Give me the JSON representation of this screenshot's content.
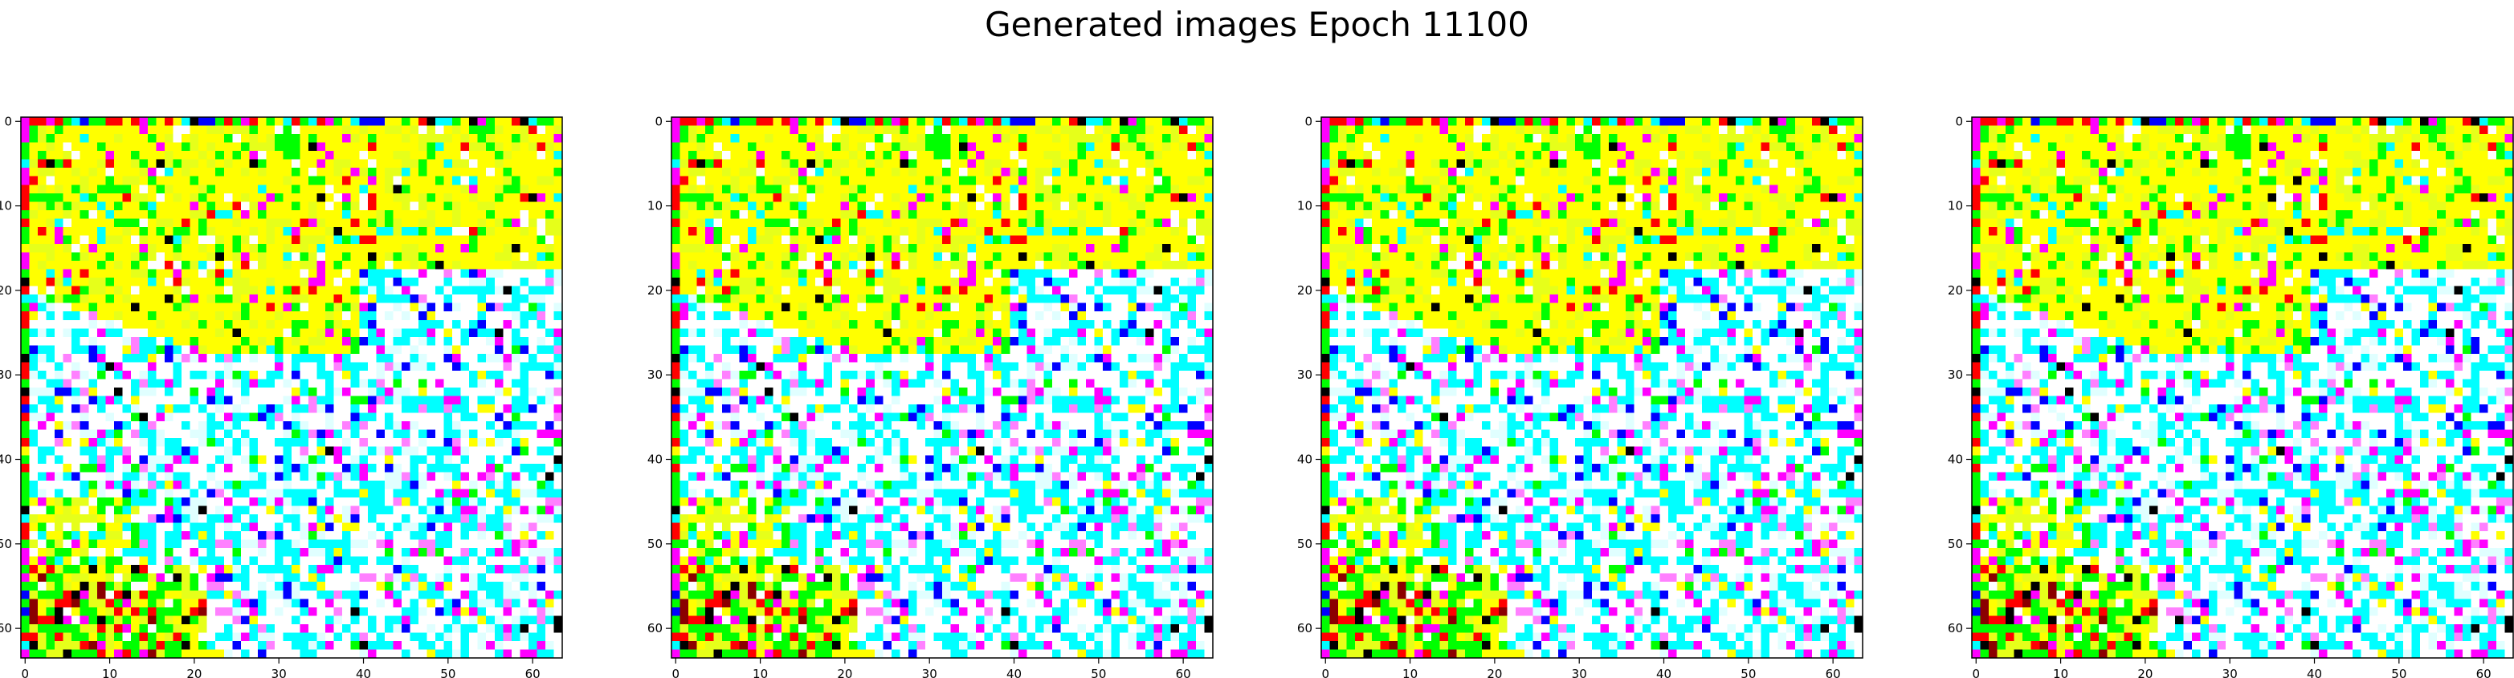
{
  "figure": {
    "title": "Generated images Epoch 11100"
  },
  "chart_data": {
    "type": "heatmap",
    "title": "Generated images Epoch 11100",
    "panel_count": 4,
    "image_shape": [
      64,
      64,
      3
    ],
    "xlim": [
      -0.5,
      63.5
    ],
    "ylim": [
      63.5,
      -0.5
    ],
    "x_ticks": [
      0,
      10,
      20,
      30,
      40,
      50,
      60
    ],
    "y_ticks": [
      0,
      10,
      20,
      30,
      40,
      50,
      60
    ],
    "xlabel": "",
    "ylabel": "",
    "grid": false,
    "palette": {
      "yellow": "#ffff00",
      "lime": "#e6ff1a",
      "green": "#00ff00",
      "cyan": "#00ffff",
      "magenta": "#ff00ff",
      "blue": "#0000ff",
      "red": "#ff0000",
      "black": "#000000",
      "white": "#ffffff",
      "pale_cyan": "#e0ffff",
      "pink": "#ff80ff",
      "dark_red": "#8b0000"
    },
    "panels": [
      {
        "index": 1,
        "description_rows": "top rows mostly yellow/green with scattered red, magenta, black; middle and lower rows mostly cyan/white with blue and magenta; bottom rows greenish with dark red"
      },
      {
        "index": 2,
        "description_rows": "same structure as panel 1"
      },
      {
        "index": 3,
        "description_rows": "same structure as panel 1"
      },
      {
        "index": 4,
        "description_rows": "same structure as panel 1"
      }
    ]
  }
}
